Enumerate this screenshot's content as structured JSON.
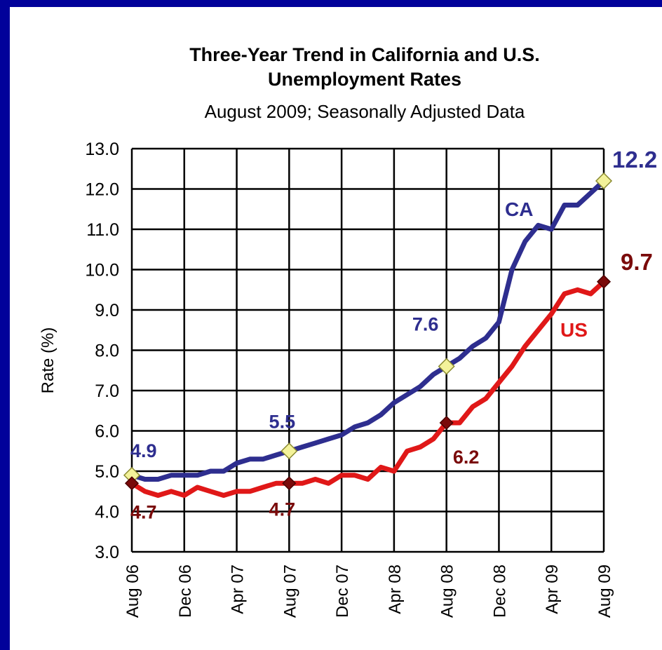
{
  "chart_data": {
    "type": "line",
    "title_line1": "Three-Year Trend in California and U.S.",
    "title_line2": "Unemployment Rates",
    "subtitle": "August 2009; Seasonally Adjusted Data",
    "ylabel": "Rate (%)",
    "xlabel": "",
    "ylim": [
      3.0,
      13.0
    ],
    "yticks": [
      "3.0",
      "4.0",
      "5.0",
      "6.0",
      "7.0",
      "8.0",
      "9.0",
      "10.0",
      "11.0",
      "12.0",
      "13.0"
    ],
    "x_ticks": [
      "Aug 06",
      "Dec 06",
      "Apr 07",
      "Aug 07",
      "Dec 07",
      "Apr 08",
      "Aug 08",
      "Dec 08",
      "Apr 09",
      "Aug 09"
    ],
    "x": [
      "Aug 06",
      "Sep 06",
      "Oct 06",
      "Nov 06",
      "Dec 06",
      "Jan 07",
      "Feb 07",
      "Mar 07",
      "Apr 07",
      "May 07",
      "Jun 07",
      "Jul 07",
      "Aug 07",
      "Sep 07",
      "Oct 07",
      "Nov 07",
      "Dec 07",
      "Jan 08",
      "Feb 08",
      "Mar 08",
      "Apr 08",
      "May 08",
      "Jun 08",
      "Jul 08",
      "Aug 08",
      "Sep 08",
      "Oct 08",
      "Nov 08",
      "Dec 08",
      "Jan 09",
      "Feb 09",
      "Mar 09",
      "Apr 09",
      "May 09",
      "Jun 09",
      "Jul 09",
      "Aug 09"
    ],
    "grid": true,
    "series": [
      {
        "name": "CA",
        "color": "#2e2e8f",
        "values": [
          4.9,
          4.8,
          4.8,
          4.9,
          4.9,
          4.9,
          5.0,
          5.0,
          5.2,
          5.3,
          5.3,
          5.4,
          5.5,
          5.6,
          5.7,
          5.8,
          5.9,
          6.1,
          6.2,
          6.4,
          6.7,
          6.9,
          7.1,
          7.4,
          7.6,
          7.8,
          8.1,
          8.3,
          8.7,
          10.0,
          10.7,
          11.1,
          11.0,
          11.6,
          11.6,
          11.9,
          12.2
        ],
        "labels": [
          {
            "index": 0,
            "text": "4.9"
          },
          {
            "index": 12,
            "text": "5.5"
          },
          {
            "index": 24,
            "text": "7.6"
          },
          {
            "index": 36,
            "text": "12.2"
          }
        ]
      },
      {
        "name": "US",
        "color": "#e01818",
        "values": [
          4.7,
          4.5,
          4.4,
          4.5,
          4.4,
          4.6,
          4.5,
          4.4,
          4.5,
          4.5,
          4.6,
          4.7,
          4.7,
          4.7,
          4.8,
          4.7,
          4.9,
          4.9,
          4.8,
          5.1,
          5.0,
          5.5,
          5.6,
          5.8,
          6.2,
          6.2,
          6.6,
          6.8,
          7.2,
          7.6,
          8.1,
          8.5,
          8.9,
          9.4,
          9.5,
          9.4,
          9.7
        ],
        "labels": [
          {
            "index": 0,
            "text": "4.7"
          },
          {
            "index": 12,
            "text": "4.7"
          },
          {
            "index": 24,
            "text": "6.2"
          },
          {
            "index": 36,
            "text": "9.7"
          }
        ]
      }
    ],
    "marker_colors": {
      "ca_marker": "#f3f29a",
      "us_marker": "#7a0a0a",
      "us_label": "#7a0a0a"
    }
  }
}
